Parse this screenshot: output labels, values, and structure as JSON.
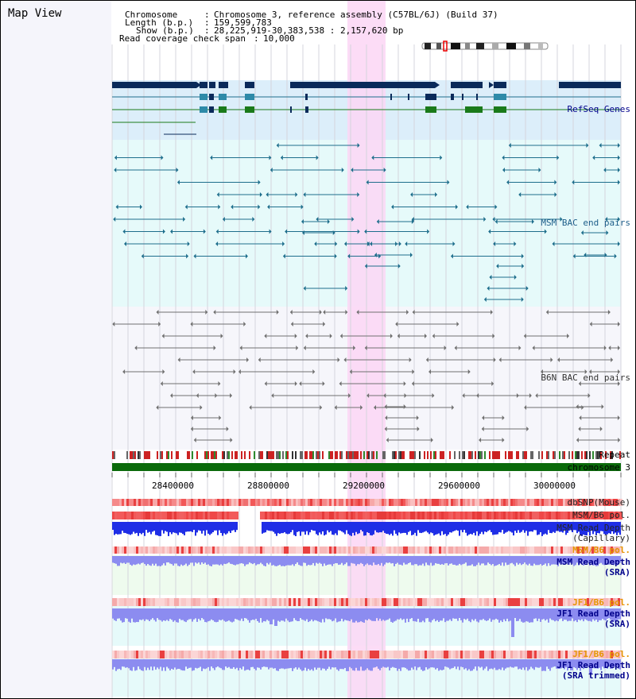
{
  "header": {
    "title": "Map View",
    "chromosome_key": "Chromosome",
    "chromosome_value": "Chromosome 3, reference assembly (C57BL/6J) (Build 37)",
    "length_key": "Length (b.p.)",
    "length_value": "159,599,783",
    "show_key": "Show (b.p.)",
    "show_value": "28,225,919-30,383,538 : 2,157,620 bp",
    "coverage_key": "Read coverage check span",
    "coverage_value": "10,000"
  },
  "tracks": {
    "refseq": "RefSeq Genes",
    "msm_bac": "MSM BAC end pairs",
    "b6n_bac": "B6N BAC end pairs",
    "repeat": "Repeat",
    "chromosome": "chromosome 3",
    "dbsnp": "dbSNP(Mouse)",
    "msm_b6_pol_1": "MSM/B6 pol.",
    "msm_depth_cap_1": "MSM Read Depth",
    "msm_depth_cap_2": "(Capillary)",
    "msm_b6_pol_2": "MSM/B6 pol.",
    "msm_depth_sra_1": "MSM Read Depth",
    "msm_depth_sra_2": "(SRA)",
    "jf1_pol_1": "JF1/B6 pol.",
    "jf1_depth_sra_1": "JF1 Read Depth",
    "jf1_depth_sra_2": "(SRA)",
    "jf1_pol_2": "JF1/B6 pol.",
    "jf1_depth_trim_1": "JF1 Read Depth",
    "jf1_depth_trim_2": "(SRA trimmed)"
  },
  "axis": {
    "ticks": [
      "28400000",
      "28800000",
      "29200000",
      "29600000",
      "30000000"
    ]
  },
  "colors": {
    "refseq_bg": "#dceefa",
    "msm_bg": "#e6fafa",
    "b6n_bg": "#f6f6fb",
    "highlight": "#fbd6f4",
    "gene_dark": "#0a2a5a",
    "gene_teal": "#2e8aa8",
    "gene_green": "#1a7a1a",
    "msm_pair": "#1e6e8c",
    "b6n_pair": "#707070",
    "chrom_bar": "#0a6a0a",
    "depth_blue": "#1f2ee6",
    "depth_light": "#8c8cf0",
    "label_blue": "#00008b",
    "label_orange": "#e59400",
    "label_dark": "#222222"
  }
}
